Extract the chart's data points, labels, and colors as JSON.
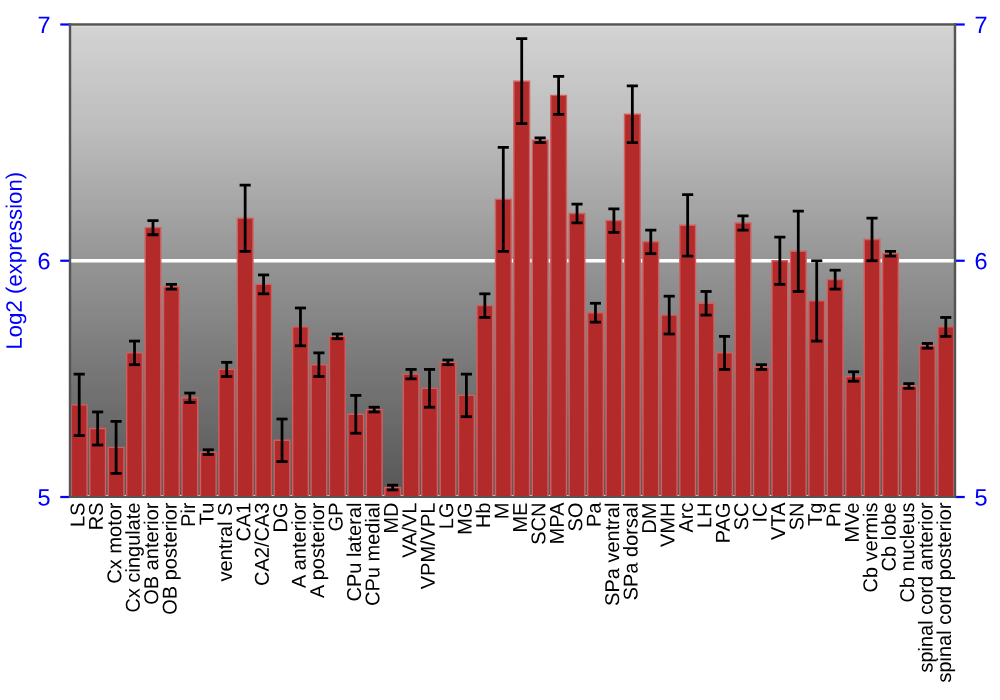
{
  "chart_data": {
    "type": "bar",
    "ylabel": "Log2 (expression)",
    "categories": [
      "LS",
      "RS",
      "Cx motor",
      "Cx cingulate",
      "OB anterior",
      "OB posterior",
      "Pir",
      "Tu",
      "ventral S",
      "CA1",
      "CA2/CA3",
      "DG",
      "A anterior",
      "A posterior",
      "GP",
      "CPu lateral",
      "CPu medial",
      "MD",
      "VA/VL",
      "VPM/VPL",
      "LG",
      "MG",
      "Hb",
      "M",
      "ME",
      "SCN",
      "MPA",
      "SO",
      "Pa",
      "SPa ventral",
      "SPa dorsal",
      "DM",
      "VMH",
      "Arc",
      "LH",
      "PAG",
      "SC",
      "IC",
      "VTA",
      "SN",
      "Tg",
      "Pn",
      "MVe",
      "Cb vermis",
      "Cb lobe",
      "Cb nucleus",
      "spinal cord anterior",
      "spinal cord posterior"
    ],
    "values": [
      5.39,
      5.29,
      5.21,
      5.61,
      6.14,
      5.89,
      5.42,
      5.19,
      5.54,
      6.18,
      5.9,
      5.24,
      5.72,
      5.56,
      5.68,
      5.35,
      5.37,
      5.04,
      5.52,
      5.46,
      5.57,
      5.43,
      5.81,
      6.26,
      6.76,
      6.51,
      6.7,
      6.2,
      5.78,
      6.17,
      6.62,
      6.08,
      5.77,
      6.15,
      5.82,
      5.61,
      6.16,
      5.55,
      6.0,
      6.04,
      5.83,
      5.92,
      5.51,
      6.09,
      6.03,
      5.47,
      5.64,
      5.72
    ],
    "errors": [
      0.13,
      0.07,
      0.11,
      0.05,
      0.03,
      0.01,
      0.02,
      0.01,
      0.03,
      0.14,
      0.04,
      0.09,
      0.08,
      0.05,
      0.01,
      0.08,
      0.01,
      0.01,
      0.02,
      0.08,
      0.01,
      0.09,
      0.05,
      0.22,
      0.18,
      0.01,
      0.08,
      0.04,
      0.04,
      0.05,
      0.12,
      0.05,
      0.08,
      0.13,
      0.05,
      0.07,
      0.03,
      0.01,
      0.1,
      0.17,
      0.17,
      0.04,
      0.02,
      0.09,
      0.01,
      0.01,
      0.01,
      0.04
    ],
    "color": "#b22a2a",
    "ylim": [
      5,
      7
    ],
    "yticks": [
      5,
      6,
      7
    ],
    "y2lim": [
      5,
      7
    ],
    "y2ticks": [
      5,
      6,
      7
    ],
    "grid": "y"
  }
}
